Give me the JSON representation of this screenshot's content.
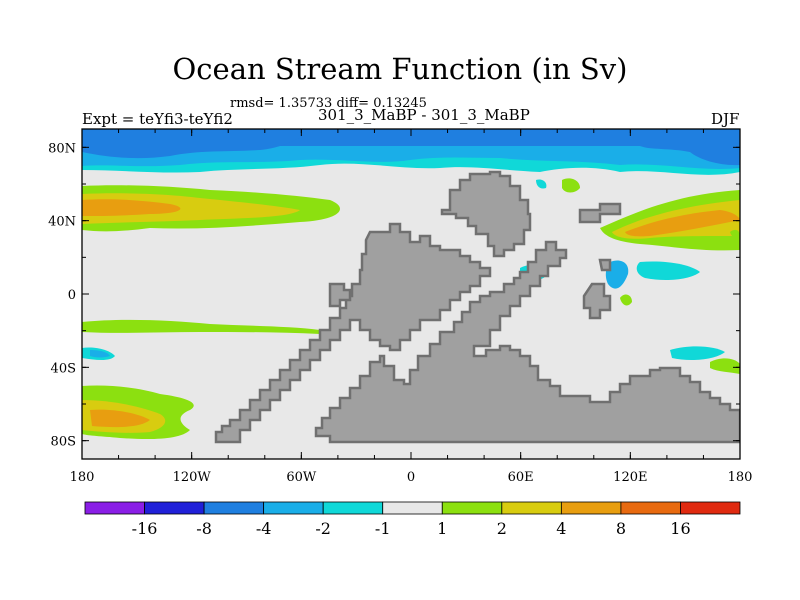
{
  "header": {
    "title": "Ocean Stream Function (in Sv)",
    "subtitle": "rmsd= 1.35733 diff= 0.13245",
    "left_label": "Expt = teYfi3-teYfi2",
    "center_label": "301_3_MaBP - 301_3_MaBP",
    "right_label": "DJF"
  },
  "chart_data": {
    "type": "heatmap",
    "title": "Ocean Stream Function (in Sv)",
    "subtitle": "rmsd= 1.35733 diff= 0.13245",
    "x_ticks": [
      "180",
      "120W",
      "60W",
      "0",
      "60E",
      "120E",
      "180"
    ],
    "x_tick_values": [
      -180,
      -120,
      -60,
      0,
      60,
      120,
      180
    ],
    "y_ticks": [
      "80N",
      "40N",
      "0",
      "40S",
      "80S"
    ],
    "y_tick_values": [
      80,
      40,
      0,
      -40,
      -80
    ],
    "xlim": [
      -180,
      180
    ],
    "ylim": [
      -90,
      90
    ],
    "contour_levels": [
      -16,
      -8,
      -4,
      -2,
      -1,
      1,
      2,
      4,
      8,
      16
    ],
    "colorbar_labels": [
      "-16",
      "-8",
      "-4",
      "-2",
      "-1",
      "1",
      "2",
      "4",
      "8",
      "16"
    ],
    "colorbar_colors": [
      "#8a1ee6",
      "#2020d8",
      "#1f7fe0",
      "#1aaee8",
      "#10d8d8",
      "#e8e8e8",
      "#8ce010",
      "#d8cc10",
      "#e89e10",
      "#e86a10",
      "#e02a10"
    ],
    "land_color": "#a0a0a0",
    "bands": [
      {
        "name": "north-polar-band",
        "level": "-4",
        "lon": [
          -180,
          180
        ],
        "lat": [
          72,
          90
        ]
      },
      {
        "name": "north-midlat-band",
        "level": "4",
        "lon": [
          -180,
          -90
        ],
        "lat": [
          38,
          56
        ]
      },
      {
        "name": "south-polar-band",
        "level": "4",
        "lon": [
          -180,
          -115
        ],
        "lat": [
          -85,
          -50
        ]
      }
    ]
  }
}
